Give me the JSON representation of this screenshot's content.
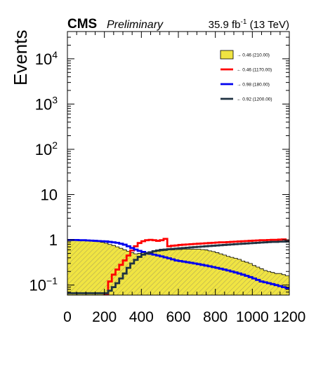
{
  "header": {
    "cms": "CMS",
    "preliminary": "Preliminary",
    "lumi_value": "35.9 fb",
    "lumi_exp": "-1",
    "lumi_energy": " (13 TeV)"
  },
  "chart_data": {
    "type": "line",
    "title": "",
    "xlabel": "",
    "ylabel": "Events",
    "xlim": [
      0,
      1200
    ],
    "ylim": [
      0.06,
      40000
    ],
    "yscale": "log",
    "grid": false,
    "legend_position": "top-right",
    "x_ticks": [
      0,
      200,
      400,
      600,
      800,
      1000,
      1200
    ],
    "x_tick_labels": [
      "0",
      "200",
      "400",
      "600",
      "800",
      "1000",
      "1200"
    ],
    "y_ticks": [
      {
        "value": 0.1,
        "base": "10",
        "exp": "−1"
      },
      {
        "value": 1,
        "label": "1"
      },
      {
        "value": 10,
        "label": "10"
      },
      {
        "value": 100,
        "base": "10",
        "exp": "2"
      },
      {
        "value": 1000,
        "base": "10",
        "exp": "3"
      },
      {
        "value": 10000,
        "base": "10",
        "exp": "4"
      }
    ],
    "series": [
      {
        "name": "→ 0.46 (210.00)",
        "style": "filled-hatched",
        "color": "#f0e442",
        "edge": "#000000",
        "x": [
          0,
          20,
          40,
          60,
          80,
          100,
          120,
          140,
          160,
          180,
          200,
          220,
          240,
          260,
          280,
          300,
          320,
          340,
          360,
          380,
          400,
          420,
          440,
          460,
          480,
          500,
          520,
          540,
          560,
          580,
          600,
          620,
          640,
          660,
          680,
          700,
          720,
          740,
          760,
          780,
          800,
          820,
          840,
          860,
          880,
          900,
          920,
          940,
          960,
          980,
          1000,
          1020,
          1040,
          1060,
          1080,
          1100,
          1120,
          1140,
          1160,
          1180
        ],
        "values": [
          0.98,
          0.98,
          0.98,
          0.97,
          0.97,
          0.96,
          0.95,
          0.93,
          0.91,
          0.88,
          0.84,
          0.79,
          0.75,
          0.7,
          0.65,
          0.6,
          0.56,
          0.52,
          0.49,
          0.5,
          0.52,
          0.53,
          0.54,
          0.55,
          0.56,
          0.57,
          0.58,
          0.6,
          0.6,
          0.61,
          0.61,
          0.62,
          0.62,
          0.62,
          0.62,
          0.62,
          0.61,
          0.6,
          0.57,
          0.55,
          0.52,
          0.49,
          0.46,
          0.43,
          0.41,
          0.39,
          0.37,
          0.34,
          0.32,
          0.3,
          0.27,
          0.25,
          0.23,
          0.21,
          0.2,
          0.19,
          0.18,
          0.18,
          0.17,
          0.16
        ]
      },
      {
        "name": "← 0.46 (1170.00)",
        "style": "line",
        "color": "#ff0000",
        "x": [
          0,
          20,
          40,
          60,
          80,
          100,
          120,
          140,
          160,
          180,
          200,
          220,
          240,
          260,
          280,
          300,
          320,
          340,
          360,
          380,
          400,
          420,
          440,
          460,
          480,
          500,
          520,
          540,
          560,
          580,
          600,
          620,
          640,
          660,
          680,
          700,
          720,
          740,
          760,
          780,
          800,
          820,
          840,
          860,
          880,
          900,
          920,
          940,
          960,
          980,
          1000,
          1020,
          1040,
          1060,
          1080,
          1100,
          1120,
          1140,
          1160,
          1180
        ],
        "values": [
          0,
          0,
          0,
          0,
          0,
          0,
          0,
          0,
          0,
          0,
          0.06,
          0.12,
          0.17,
          0.22,
          0.28,
          0.35,
          0.45,
          0.58,
          0.72,
          0.85,
          0.93,
          0.98,
          1.0,
          0.98,
          0.95,
          0.98,
          1.05,
          0.72,
          0.74,
          0.75,
          0.77,
          0.78,
          0.79,
          0.8,
          0.81,
          0.82,
          0.83,
          0.84,
          0.85,
          0.86,
          0.87,
          0.88,
          0.88,
          0.89,
          0.9,
          0.91,
          0.92,
          0.93,
          0.94,
          0.95,
          0.96,
          0.97,
          0.98,
          0.98,
          0.99,
          1.0,
          1.0,
          1.01,
          1.02,
          0.95
        ]
      },
      {
        "name": "→ 0.98 (180.00)",
        "style": "line",
        "color": "#0000ee",
        "x": [
          0,
          20,
          40,
          60,
          80,
          100,
          120,
          140,
          160,
          180,
          200,
          220,
          240,
          260,
          280,
          300,
          320,
          340,
          360,
          380,
          400,
          420,
          440,
          460,
          480,
          500,
          520,
          540,
          560,
          580,
          600,
          620,
          640,
          660,
          680,
          700,
          720,
          740,
          760,
          780,
          800,
          820,
          840,
          860,
          880,
          900,
          920,
          940,
          960,
          980,
          1000,
          1020,
          1040,
          1060,
          1080,
          1100,
          1120,
          1140,
          1160,
          1180
        ],
        "values": [
          0.99,
          0.99,
          0.99,
          0.98,
          0.98,
          0.97,
          0.96,
          0.95,
          0.94,
          0.93,
          0.92,
          0.9,
          0.88,
          0.86,
          0.82,
          0.78,
          0.72,
          0.66,
          0.61,
          0.57,
          0.54,
          0.51,
          0.49,
          0.47,
          0.45,
          0.43,
          0.41,
          0.39,
          0.37,
          0.35,
          0.34,
          0.33,
          0.32,
          0.31,
          0.3,
          0.29,
          0.28,
          0.27,
          0.26,
          0.25,
          0.24,
          0.23,
          0.22,
          0.21,
          0.2,
          0.19,
          0.18,
          0.17,
          0.16,
          0.15,
          0.14,
          0.13,
          0.12,
          0.115,
          0.11,
          0.105,
          0.1,
          0.095,
          0.09,
          0.085
        ]
      },
      {
        "name": "← 0.92 (1200.00)",
        "style": "line",
        "color": "#1f3241",
        "x": [
          0,
          20,
          40,
          60,
          80,
          100,
          120,
          140,
          160,
          180,
          200,
          220,
          240,
          260,
          280,
          300,
          320,
          340,
          360,
          380,
          400,
          420,
          440,
          460,
          480,
          500,
          520,
          540,
          560,
          580,
          600,
          620,
          640,
          660,
          680,
          700,
          720,
          740,
          760,
          780,
          800,
          820,
          840,
          860,
          880,
          900,
          920,
          940,
          960,
          980,
          1000,
          1020,
          1040,
          1060,
          1080,
          1100,
          1120,
          1140,
          1160,
          1180
        ],
        "values": [
          0.066,
          0.066,
          0.066,
          0.066,
          0.066,
          0.066,
          0.066,
          0.066,
          0.066,
          0.066,
          0.066,
          0.075,
          0.09,
          0.11,
          0.14,
          0.18,
          0.24,
          0.3,
          0.36,
          0.42,
          0.47,
          0.5,
          0.53,
          0.56,
          0.58,
          0.6,
          0.61,
          0.62,
          0.63,
          0.64,
          0.65,
          0.66,
          0.67,
          0.68,
          0.69,
          0.7,
          0.71,
          0.72,
          0.73,
          0.74,
          0.75,
          0.76,
          0.77,
          0.78,
          0.79,
          0.8,
          0.81,
          0.82,
          0.83,
          0.84,
          0.85,
          0.86,
          0.87,
          0.88,
          0.89,
          0.9,
          0.9,
          0.91,
          0.91,
          0.92
        ]
      }
    ]
  }
}
